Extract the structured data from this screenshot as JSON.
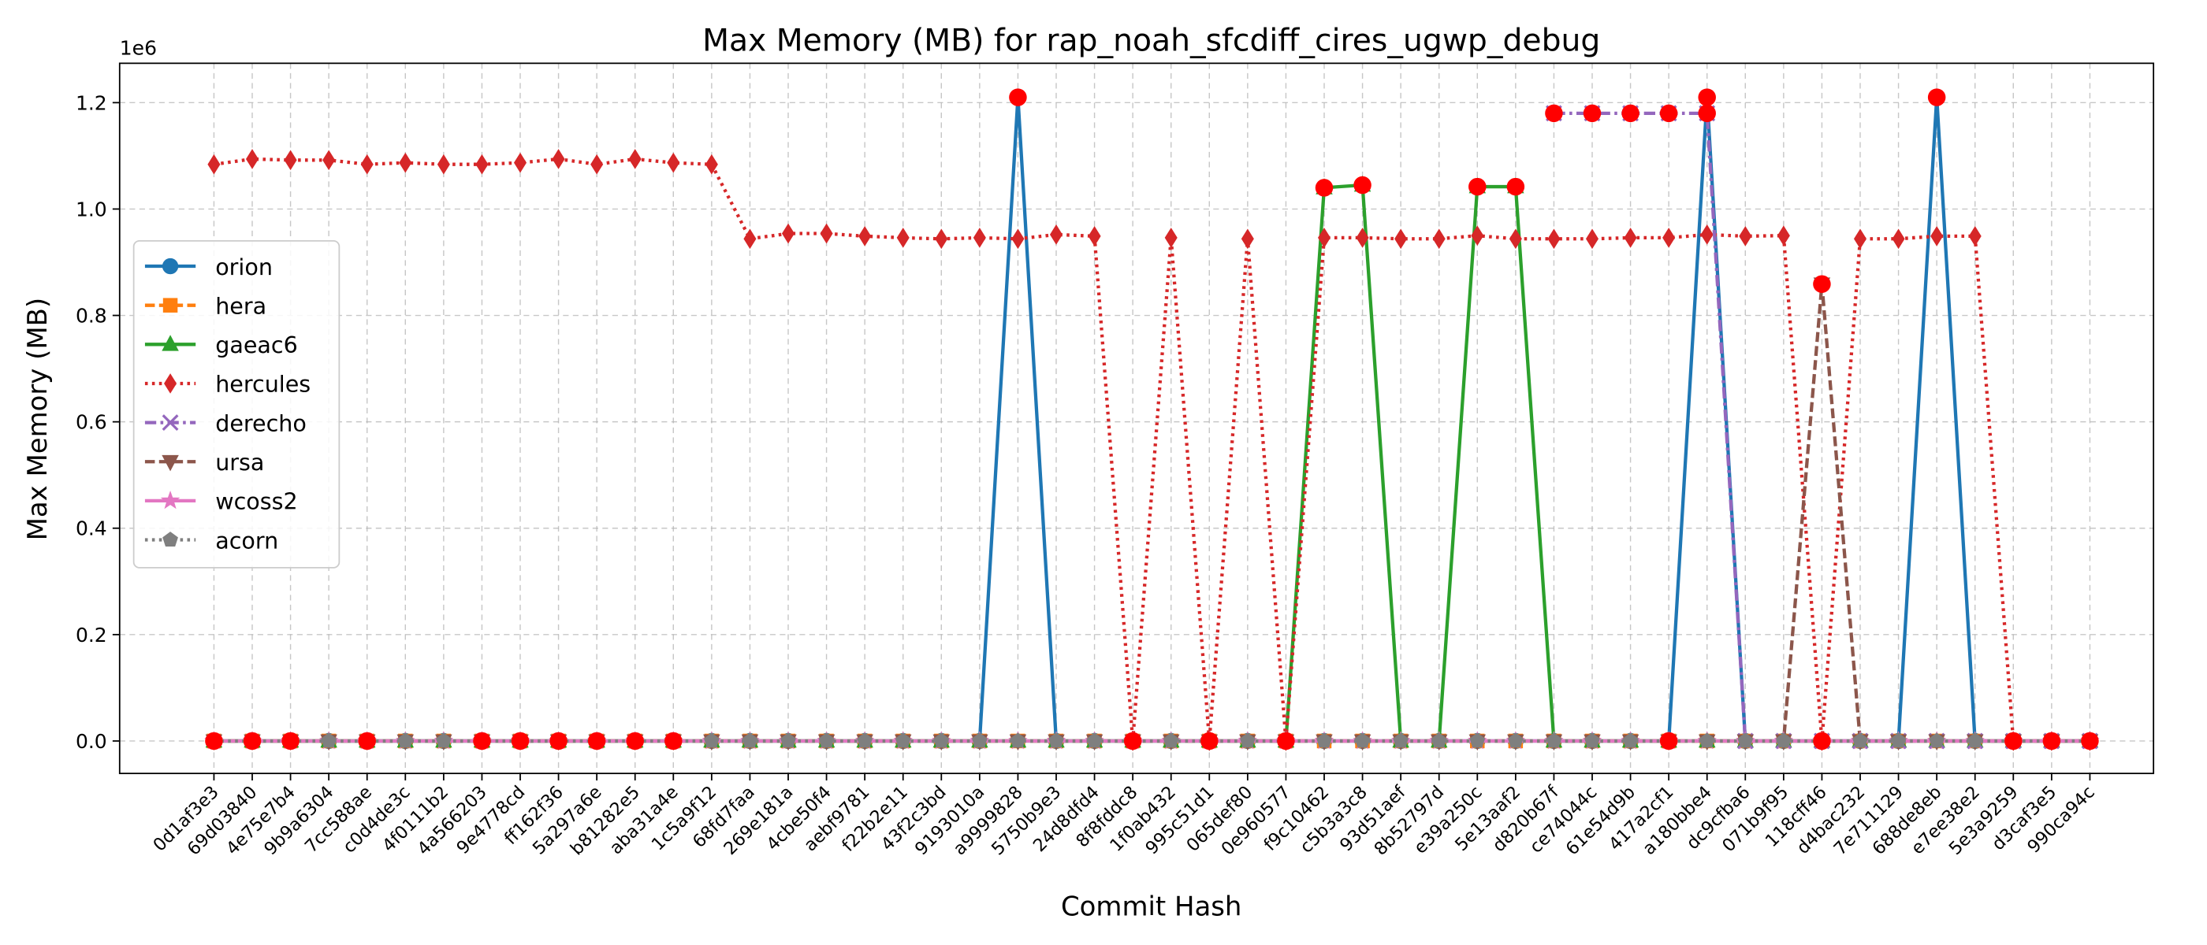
{
  "chart_data": {
    "type": "line",
    "title": "Max Memory (MB) for rap_noah_sfcdiff_cires_ugwp_debug",
    "x_label": "Commit Hash",
    "y_label": "Max Memory (MB)",
    "y_offset_label": "1e6",
    "categories": [
      "0d1af3e3",
      "69d03840",
      "4e75e7b4",
      "9b9a6304",
      "7cc588ae",
      "c0d4de3c",
      "4f0111b2",
      "4a566203",
      "9e4778cd",
      "ff162f36",
      "5a297a6e",
      "b81282e5",
      "aba31a4e",
      "1c5a9f12",
      "68fd7faa",
      "269e181a",
      "4cbe50f4",
      "aebf9781",
      "f22b2e11",
      "43f2c3bd",
      "9193010a",
      "a9999828",
      "5750b9e3",
      "24d8dfd4",
      "8f8fddc8",
      "1f0ab432",
      "995c51d1",
      "065def80",
      "0e960577",
      "f9c10462",
      "c5b3a3c8",
      "93d51aef",
      "8b52797d",
      "e39a250c",
      "5e13aaf2",
      "d820b67f",
      "ce74044c",
      "61e54d9b",
      "417a2cf1",
      "a180bbe4",
      "dc9cfba6",
      "071b9f95",
      "118cff46",
      "d4bac232",
      "7e711129",
      "688de8eb",
      "e7ee38e2",
      "5e3a9259",
      "d3caf3e5",
      "990ca94c"
    ],
    "series": [
      {
        "name": "orion",
        "color": "#1f77b4",
        "marker": "circle",
        "dash": "solid",
        "values": [
          0,
          0,
          0,
          0,
          0,
          0,
          0,
          0,
          0,
          0,
          0,
          0,
          0,
          0,
          0,
          0,
          0,
          0,
          0,
          0,
          0,
          1.21,
          0,
          0,
          0,
          0,
          0,
          0,
          0,
          0,
          0,
          0,
          0,
          0,
          0,
          0,
          0,
          0,
          0,
          1.21,
          0,
          0,
          0,
          0,
          0,
          1.21,
          0,
          0,
          0,
          0
        ]
      },
      {
        "name": "hera",
        "color": "#ff7f0e",
        "marker": "square",
        "dash": "dashed",
        "values": [
          0,
          0,
          0,
          0,
          0,
          0,
          0,
          0,
          0,
          0,
          0,
          0,
          0,
          0,
          0,
          0,
          0,
          0,
          0,
          0,
          0,
          0,
          0,
          0,
          0,
          0,
          0,
          0,
          0,
          0,
          0,
          0,
          0,
          0,
          0,
          0,
          0,
          0,
          0,
          0,
          0,
          0,
          0,
          0,
          0,
          0,
          0,
          0,
          0,
          0
        ]
      },
      {
        "name": "gaeac6",
        "color": "#2ca02c",
        "marker": "triangle",
        "dash": "solid",
        "values": [
          0,
          0,
          0,
          0,
          0,
          0,
          0,
          0,
          0,
          0,
          0,
          0,
          0,
          0,
          0,
          0,
          0,
          0,
          0,
          0,
          0,
          0,
          0,
          0,
          0,
          0,
          0,
          0,
          0,
          1.04,
          1.045,
          0,
          0,
          1.042,
          1.042,
          0,
          0,
          0,
          0,
          0,
          0,
          0,
          0,
          0,
          0,
          0,
          0,
          0,
          0,
          0
        ]
      },
      {
        "name": "hercules",
        "color": "#d62728",
        "marker": "diamond",
        "dash": "dotted",
        "values": [
          1.084,
          1.094,
          1.092,
          1.092,
          1.084,
          1.087,
          1.084,
          1.084,
          1.087,
          1.094,
          1.084,
          1.094,
          1.087,
          1.084,
          0.944,
          0.954,
          0.954,
          0.949,
          0.946,
          0.944,
          0.946,
          0.944,
          0.952,
          0.949,
          0,
          0.946,
          0,
          0.944,
          0,
          0.946,
          0.946,
          0.944,
          0.944,
          0.95,
          0.944,
          0.944,
          0.944,
          0.946,
          0.946,
          0.952,
          0.949,
          0.95,
          0,
          0.944,
          0.944,
          0.949,
          0.949,
          0,
          0,
          0
        ]
      },
      {
        "name": "derecho",
        "color": "#9467bd",
        "marker": "x",
        "dash": "dashdot",
        "values": [
          null,
          null,
          null,
          null,
          null,
          null,
          null,
          null,
          null,
          null,
          null,
          null,
          null,
          null,
          null,
          null,
          null,
          null,
          null,
          null,
          null,
          null,
          null,
          null,
          null,
          null,
          null,
          null,
          null,
          null,
          null,
          null,
          null,
          null,
          null,
          1.18,
          1.18,
          1.18,
          1.18,
          1.18,
          0,
          0,
          0,
          0,
          0,
          0,
          0,
          0,
          0,
          0
        ]
      },
      {
        "name": "ursa",
        "color": "#8c564b",
        "marker": "triangle-down",
        "dash": "dashed",
        "values": [
          0,
          0,
          0,
          0,
          0,
          0,
          0,
          0,
          0,
          0,
          0,
          0,
          0,
          0,
          0,
          0,
          0,
          0,
          0,
          0,
          0,
          0,
          0,
          0,
          0,
          0,
          0,
          0,
          0,
          0,
          0,
          0,
          0,
          0,
          0,
          0,
          0,
          0,
          0,
          0,
          0,
          0,
          0.859,
          0,
          0,
          0,
          0,
          0,
          0,
          0
        ]
      },
      {
        "name": "wcoss2",
        "color": "#e377c2",
        "marker": "star",
        "dash": "solid",
        "values": [
          0,
          0,
          0,
          0,
          0,
          0,
          0,
          0,
          0,
          0,
          0,
          0,
          0,
          0,
          0,
          0,
          0,
          0,
          0,
          0,
          0,
          0,
          0,
          0,
          0,
          0,
          0,
          0,
          0,
          0,
          0,
          0,
          0,
          0,
          0,
          0,
          0,
          0,
          0,
          0,
          0,
          0,
          0,
          0,
          0,
          0,
          0,
          0,
          0,
          0
        ]
      },
      {
        "name": "acorn",
        "color": "#7f7f7f",
        "marker": "pentagon",
        "dash": "dotted",
        "values": [
          0,
          0,
          0,
          0,
          0,
          0,
          0,
          0,
          0,
          0,
          0,
          0,
          0,
          0,
          0,
          0,
          0,
          0,
          0,
          0,
          0,
          0,
          0,
          0,
          0,
          0,
          0,
          0,
          0,
          0,
          0,
          0,
          0,
          0,
          0,
          0,
          0,
          0,
          0,
          0,
          0,
          0,
          0,
          0,
          0,
          0,
          0,
          0,
          0,
          0
        ]
      }
    ],
    "highlights": {
      "color": "#ff0000",
      "points": [
        {
          "x": "0d1af3e3",
          "y": 0
        },
        {
          "x": "69d03840",
          "y": 0
        },
        {
          "x": "4e75e7b4",
          "y": 0
        },
        {
          "x": "7cc588ae",
          "y": 0
        },
        {
          "x": "4a566203",
          "y": 0
        },
        {
          "x": "9e4778cd",
          "y": 0
        },
        {
          "x": "ff162f36",
          "y": 0
        },
        {
          "x": "5a297a6e",
          "y": 0
        },
        {
          "x": "b81282e5",
          "y": 0
        },
        {
          "x": "aba31a4e",
          "y": 0
        },
        {
          "x": "a9999828",
          "y": 1.21
        },
        {
          "x": "8f8fddc8",
          "y": 0
        },
        {
          "x": "995c51d1",
          "y": 0
        },
        {
          "x": "0e960577",
          "y": 0
        },
        {
          "x": "f9c10462",
          "y": 1.04
        },
        {
          "x": "c5b3a3c8",
          "y": 1.045
        },
        {
          "x": "e39a250c",
          "y": 1.042
        },
        {
          "x": "5e13aaf2",
          "y": 1.042
        },
        {
          "x": "d820b67f",
          "y": 1.18
        },
        {
          "x": "ce74044c",
          "y": 1.18
        },
        {
          "x": "61e54d9b",
          "y": 1.18
        },
        {
          "x": "417a2cf1",
          "y": 1.18
        },
        {
          "x": "417a2cf1",
          "y": 0
        },
        {
          "x": "a180bbe4",
          "y": 1.21
        },
        {
          "x": "a180bbe4",
          "y": 1.18
        },
        {
          "x": "118cff46",
          "y": 0.859
        },
        {
          "x": "118cff46",
          "y": 0
        },
        {
          "x": "688de8eb",
          "y": 1.21
        },
        {
          "x": "5e3a9259",
          "y": 0
        },
        {
          "x": "d3caf3e5",
          "y": 0
        },
        {
          "x": "990ca94c",
          "y": 0
        }
      ]
    },
    "ylim": [
      -0.061,
      1.274
    ],
    "yticks": [
      {
        "value": 0,
        "label": "0.0"
      },
      0.2,
      0.4,
      0.6,
      0.8,
      {
        "value": 1,
        "label": "1.0"
      },
      1.2
    ],
    "grid": true,
    "legend": "center left"
  }
}
